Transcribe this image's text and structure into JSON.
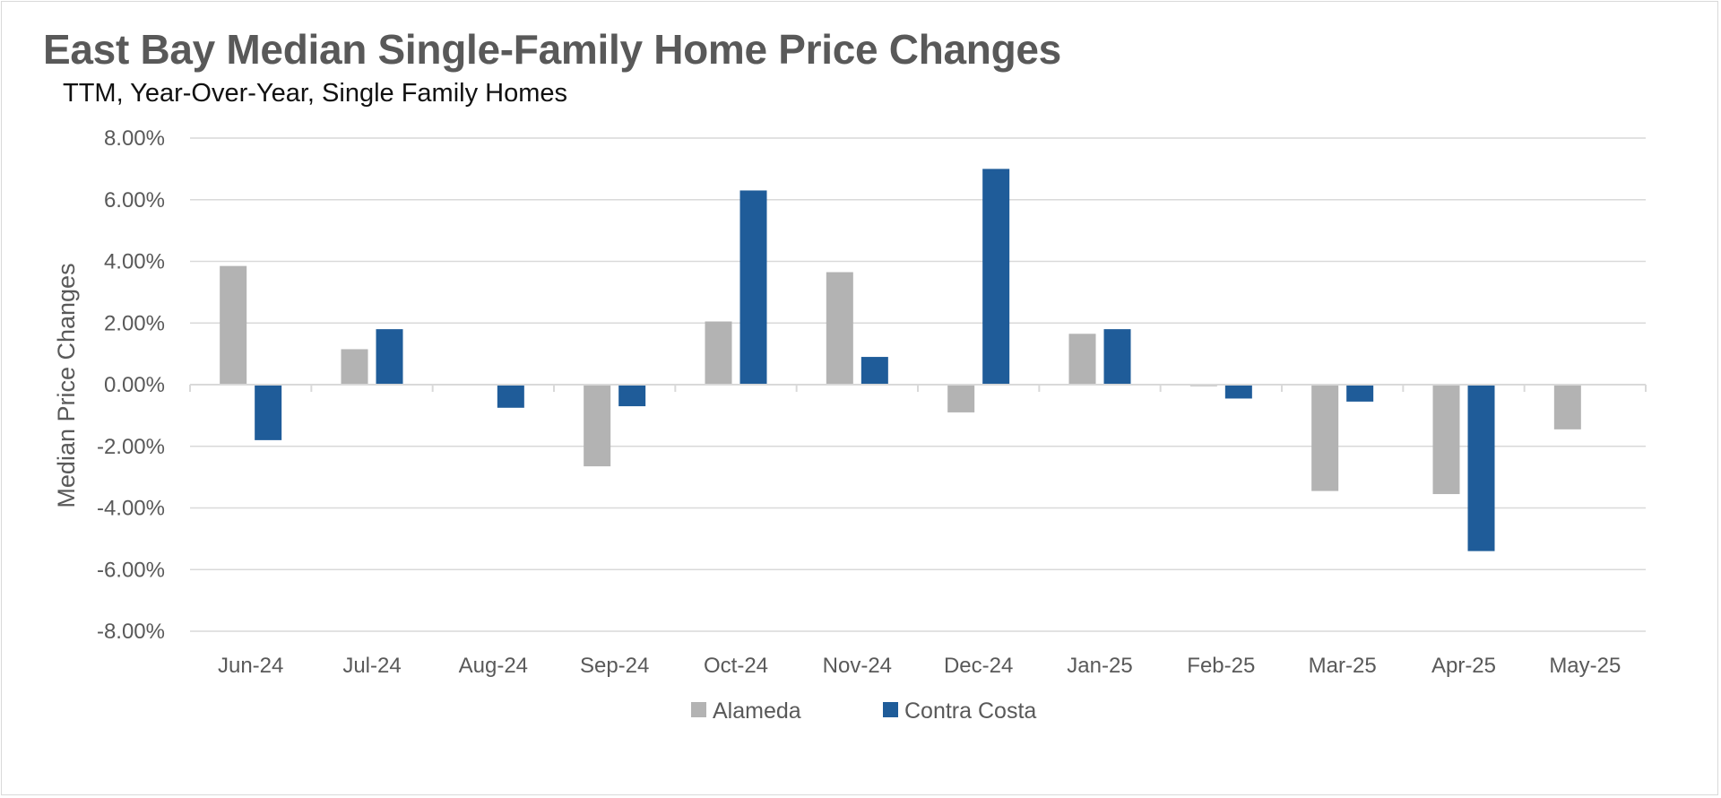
{
  "chart_data": {
    "type": "bar",
    "title": "East Bay Median Single-Family Home Price Changes",
    "subtitle": "TTM, Year-Over-Year, Single Family Homes",
    "ylabel": "Median Price Changes",
    "xlabel": "",
    "categories": [
      "Jun-24",
      "Jul-24",
      "Aug-24",
      "Sep-24",
      "Oct-24",
      "Nov-24",
      "Dec-24",
      "Jan-25",
      "Feb-25",
      "Mar-25",
      "Apr-25",
      "May-25"
    ],
    "series": [
      {
        "name": "Alameda",
        "color": "#b3b3b3",
        "values": [
          3.85,
          1.15,
          0.0,
          -2.65,
          2.05,
          3.65,
          -0.9,
          1.65,
          -0.05,
          -3.45,
          -3.55,
          -1.45
        ]
      },
      {
        "name": "Contra Costa",
        "color": "#1f5c99",
        "values": [
          -1.8,
          1.8,
          -0.75,
          -0.7,
          6.3,
          0.9,
          7.0,
          1.8,
          -0.45,
          -0.55,
          -5.4,
          null
        ]
      }
    ],
    "ylim": [
      -8,
      8
    ],
    "yticks": [
      8,
      6,
      4,
      2,
      0,
      -2,
      -4,
      -6,
      -8
    ],
    "ytick_labels": [
      "8.00%",
      "6.00%",
      "4.00%",
      "2.00%",
      "0.00%",
      "-2.00%",
      "-4.00%",
      "-6.00%",
      "-8.00%"
    ],
    "grid": true,
    "legend_position": "bottom-center"
  }
}
